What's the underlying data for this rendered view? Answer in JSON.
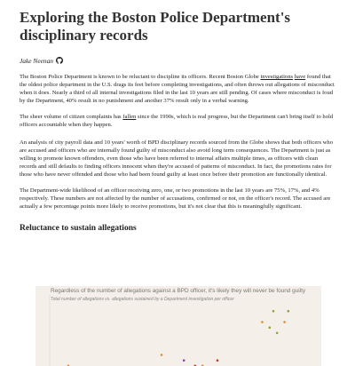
{
  "article": {
    "title": "Exploring the Boston Police Department's disciplinary records",
    "author": "Jake Neenan",
    "author_icon": "github-icon",
    "p1": {
      "before": "The Boston Police Department is known to be reluctant to discipline its officers. Recent Boston Globe ",
      "link1": "investigations",
      "between": " ",
      "link2": "have",
      "after": " found that the oldest police department in the U.S. drags its feet before completing investigations, and often throws out allegations of misconduct when it does. Nearly a third of all internal investigations filed in the last 10 years are still pending. Of cases where misconduct is foud by the Department, 40% result in no punishment and another 37% result only in a verbal warning."
    },
    "p2": {
      "before": "The sheer volume of citizen complaints has ",
      "link": "fallen",
      "after": " since the 1990s, which is real progress, but the Department can't bring itself to hold officers accountable when they happen."
    },
    "p3": "An analysis of city payroll data and 10 years' worth of BPD disciplinary records sourced from the Globe shows that both officers who are accused and officers who are internally found guilty of misconduct also avoid long term consequences. The Department is just as willing to promote known offenders, even those who have been referred to internal affairs multiple times, as officers with clean records and still defaults to finding officers innocent when they're accused of patterns of misconduct. In fact, the promotions rates for those who have never offended and those who had been found guilty at least once before their promotion are functionally identical.",
    "p4": "The Department-wide likelihood of an officer receiving zero, one, or two promotions in the last 10 years are 75%, 17%, and 4% respectively. These numbers are not affected by the number of accusations, confirmed or not, on the officer's record. The accused are actually a few percentage points more likely to receive promotions, but it's not clear that this is meaningfully significant.",
    "section_heading": "Reluctance to sustain allegations"
  },
  "chart_data": {
    "type": "scatter",
    "title": "Regardless of the number of allegations against a BPD officer, it's likely they will never be found guilty",
    "subtitle": "Total number of allegations vs. allegations sustained by a Department investigation per officer",
    "xlabel": "",
    "ylabel": "",
    "colors": {
      "background": "#f4f0e9",
      "green": "#8aa63a",
      "orange": "#e08a2e",
      "red": "#c0392b",
      "purple": "#8e44ad"
    },
    "points": [
      {
        "x": 60,
        "y": 11,
        "color": "green"
      },
      {
        "x": 64,
        "y": 11,
        "color": "green"
      },
      {
        "x": 57,
        "y": 9,
        "color": "orange"
      },
      {
        "x": 63,
        "y": 9,
        "color": "orange"
      },
      {
        "x": 59,
        "y": 8,
        "color": "green"
      },
      {
        "x": 61,
        "y": 7,
        "color": "green"
      },
      {
        "x": 30,
        "y": 3,
        "color": "orange"
      },
      {
        "x": 36,
        "y": 2,
        "color": "purple"
      },
      {
        "x": 39,
        "y": 1,
        "color": "red"
      },
      {
        "x": 41,
        "y": 1,
        "color": "orange"
      },
      {
        "x": 45,
        "y": 2,
        "color": "red"
      },
      {
        "x": 5,
        "y": 1,
        "color": "orange"
      }
    ]
  }
}
